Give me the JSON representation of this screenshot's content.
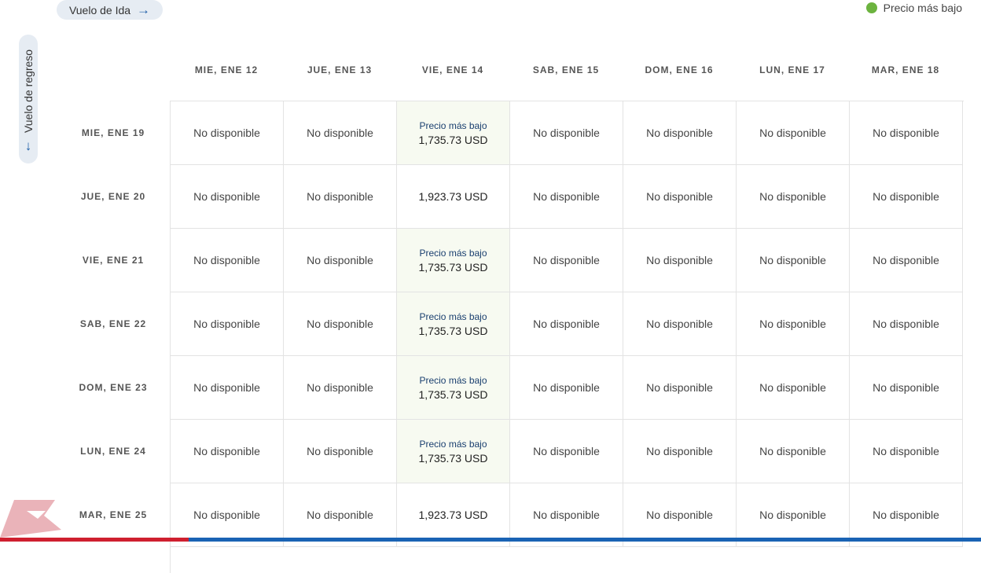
{
  "outbound_toggle": {
    "label": "Vuelo de Ida"
  },
  "return_toggle": {
    "label": "Vuelo de regreso"
  },
  "legend": {
    "label": "Precio más bajo",
    "color": "#6cb33f"
  },
  "lowest_badge": "Precio más bajo",
  "columns": [
    "MIE, ENE 12",
    "JUE, ENE 13",
    "VIE, ENE 14",
    "SAB, ENE 15",
    "DOM, ENE 16",
    "LUN, ENE 17",
    "MAR, ENE 18"
  ],
  "rows": [
    {
      "label": "MIE, ENE 19",
      "cells": [
        "No disponible",
        "No disponible",
        "1,735.73 USD",
        "No disponible",
        "No disponible",
        "No disponible",
        "No disponible"
      ],
      "lowest": [
        2
      ]
    },
    {
      "label": "JUE, ENE 20",
      "cells": [
        "No disponible",
        "No disponible",
        "1,923.73 USD",
        "No disponible",
        "No disponible",
        "No disponible",
        "No disponible"
      ],
      "lowest": []
    },
    {
      "label": "VIE, ENE 21",
      "cells": [
        "No disponible",
        "No disponible",
        "1,735.73 USD",
        "No disponible",
        "No disponible",
        "No disponible",
        "No disponible"
      ],
      "lowest": [
        2
      ]
    },
    {
      "label": "SAB, ENE 22",
      "cells": [
        "No disponible",
        "No disponible",
        "1,735.73 USD",
        "No disponible",
        "No disponible",
        "No disponible",
        "No disponible"
      ],
      "lowest": [
        2
      ]
    },
    {
      "label": "DOM, ENE 23",
      "cells": [
        "No disponible",
        "No disponible",
        "1,735.73 USD",
        "No disponible",
        "No disponible",
        "No disponible",
        "No disponible"
      ],
      "lowest": [
        2
      ]
    },
    {
      "label": "LUN, ENE 24",
      "cells": [
        "No disponible",
        "No disponible",
        "1,735.73 USD",
        "No disponible",
        "No disponible",
        "No disponible",
        "No disponible"
      ],
      "lowest": [
        2
      ]
    },
    {
      "label": "MAR, ENE 25",
      "cells": [
        "No disponible",
        "No disponible",
        "1,923.73 USD",
        "No disponible",
        "No disponible",
        "No disponible",
        "No disponible"
      ],
      "lowest": []
    }
  ],
  "icons": {
    "outbound_arrow": "arrow-right-icon",
    "return_arrow": "arrow-down-icon",
    "brand_logo": "airline-logo"
  },
  "colors": {
    "accent": "#1f5fa8",
    "lowest_bg": "#f7faf1",
    "brand_red": "#cf1f2f",
    "brand_blue": "#1a63b4"
  }
}
